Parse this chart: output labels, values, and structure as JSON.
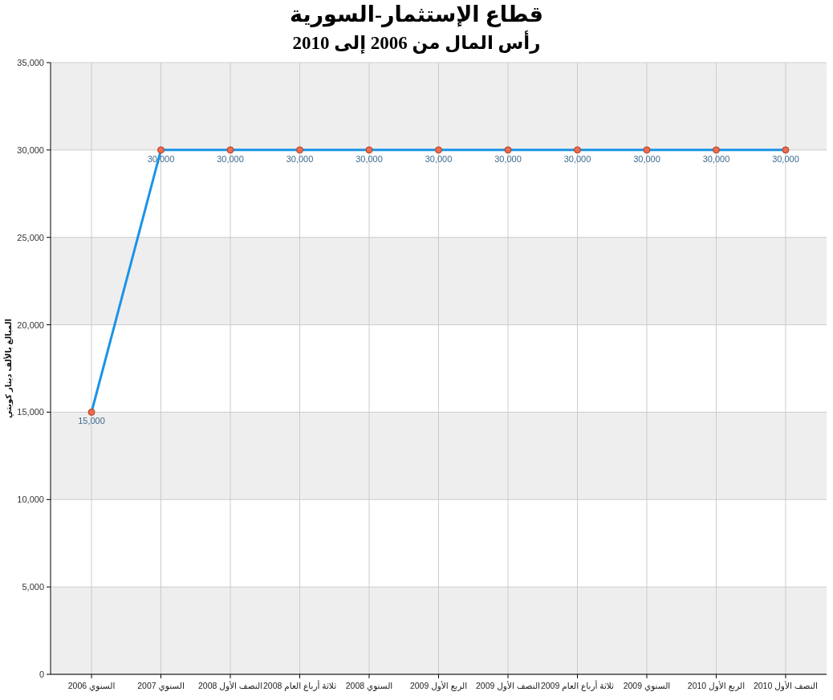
{
  "chart_data": {
    "type": "line",
    "title": "قطاع الإستثمار-السورية",
    "subtitle": "رأس المال من 2006 إلى 2010",
    "ylabel": "المبالغ بالألف دينار كويتي",
    "categories": [
      "السنوي 2006",
      "السنوي 2007",
      "النصف الأول 2008",
      "ثلاثة أرباع العام 2008",
      "السنوي 2008",
      "الربع الأول 2009",
      "النصف الأول 2009",
      "ثلاثة أرباع العام 2009",
      "السنوي 2009",
      "الربع الأول 2010",
      "النصف الأول 2010"
    ],
    "series": [
      {
        "color": "#1a94e6",
        "colors": [
          "#f26b4a",
          "#f26b4a",
          "#f26b4a",
          "#f26b4a",
          "#f26b4a",
          "#f26b4a",
          "#f26b4a",
          "#f26b4a",
          "#f26b4a",
          "#f26b4a",
          "#f26b4a"
        ],
        "values": [
          15000,
          30000,
          30000,
          30000,
          30000,
          30000,
          30000,
          30000,
          30000,
          30000,
          30000
        ],
        "value_labels": [
          "15,000",
          "30,000",
          "30,000",
          "30,000",
          "30,000",
          "30,000",
          "30,000",
          "30,000",
          "30,000",
          "30,000",
          "30,000"
        ]
      }
    ],
    "ylim": [
      0,
      35000
    ],
    "yticks": [
      0,
      {
        "value": 5000,
        "label": "5,000"
      },
      {
        "value": 10000,
        "label": "10,000"
      },
      {
        "value": 15000,
        "label": "15,000"
      },
      {
        "value": 20000,
        "label": "20,000"
      },
      {
        "value": 25000,
        "label": "25,000"
      },
      {
        "value": 30000,
        "label": "30,000"
      },
      {
        "value": 35000,
        "label": "35,000"
      }
    ],
    "grid": true,
    "marker": "circle"
  }
}
